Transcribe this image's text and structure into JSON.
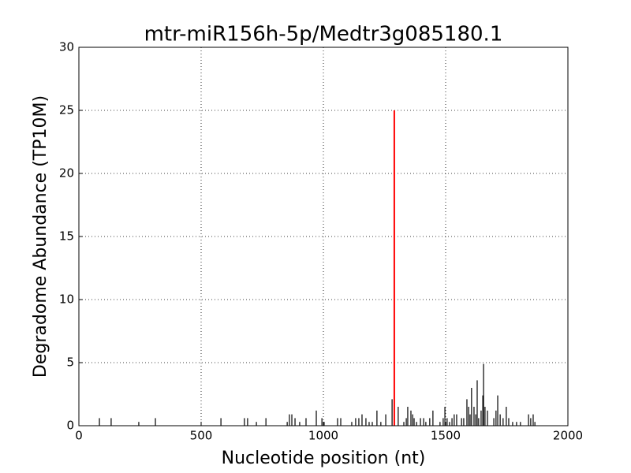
{
  "chart_data": {
    "type": "bar",
    "title": "mtr-miR156h-5p/Medtr3g085180.1",
    "x_label": "Nucleotide position (nt)",
    "y_label": "Degradome Abundance (TP10M)",
    "xlim": [
      0,
      2000
    ],
    "ylim": [
      0,
      30
    ],
    "xticks": [
      0,
      500,
      1000,
      1500,
      2000
    ],
    "yticks": [
      0,
      5,
      10,
      15,
      20,
      25,
      30
    ],
    "grid": true,
    "series": [
      {
        "color": "#000000",
        "x": [
          84,
          132,
          245,
          313,
          581,
          677,
          690,
          726,
          765,
          852,
          861,
          871,
          884,
          903,
          929,
          971,
          994,
          1003,
          1058,
          1071,
          1116,
          1132,
          1145,
          1158,
          1174,
          1187,
          1200,
          1219,
          1235,
          1255,
          1281,
          1306,
          1329,
          1339,
          1345,
          1358,
          1365,
          1371,
          1381,
          1397,
          1410,
          1419,
          1435,
          1448,
          1477,
          1490,
          1497,
          1506,
          1516,
          1526,
          1535,
          1545,
          1565,
          1574,
          1587,
          1594,
          1600,
          1606,
          1616,
          1623,
          1629,
          1635,
          1645,
          1652,
          1655,
          1661,
          1671,
          1697,
          1706,
          1713,
          1723,
          1735,
          1748,
          1758,
          1774,
          1790,
          1806,
          1839,
          1848,
          1858,
          1865
        ],
        "values": [
          0.6,
          0.6,
          0.3,
          0.6,
          0.6,
          0.6,
          0.6,
          0.3,
          0.6,
          0.3,
          0.9,
          0.9,
          0.6,
          0.3,
          0.6,
          1.2,
          0.6,
          0.3,
          0.6,
          0.6,
          0.3,
          0.6,
          0.6,
          0.9,
          0.6,
          0.3,
          0.3,
          1.2,
          0.3,
          0.9,
          2.1,
          1.5,
          0.3,
          0.6,
          1.5,
          1.2,
          0.9,
          0.6,
          0.3,
          0.6,
          0.6,
          0.3,
          0.6,
          1.2,
          0.3,
          0.6,
          1.5,
          0.6,
          0.3,
          0.6,
          0.9,
          0.9,
          0.6,
          0.6,
          2.1,
          1.5,
          0.9,
          3.0,
          1.5,
          0.9,
          3.6,
          0.6,
          1.2,
          2.4,
          4.9,
          1.5,
          1.2,
          0.6,
          1.2,
          2.4,
          0.9,
          0.6,
          1.5,
          0.6,
          0.3,
          0.3,
          0.3,
          0.9,
          0.6,
          0.9,
          0.3
        ]
      },
      {
        "color": "#ff0000",
        "x": [
          1290
        ],
        "values": [
          25
        ]
      }
    ]
  }
}
